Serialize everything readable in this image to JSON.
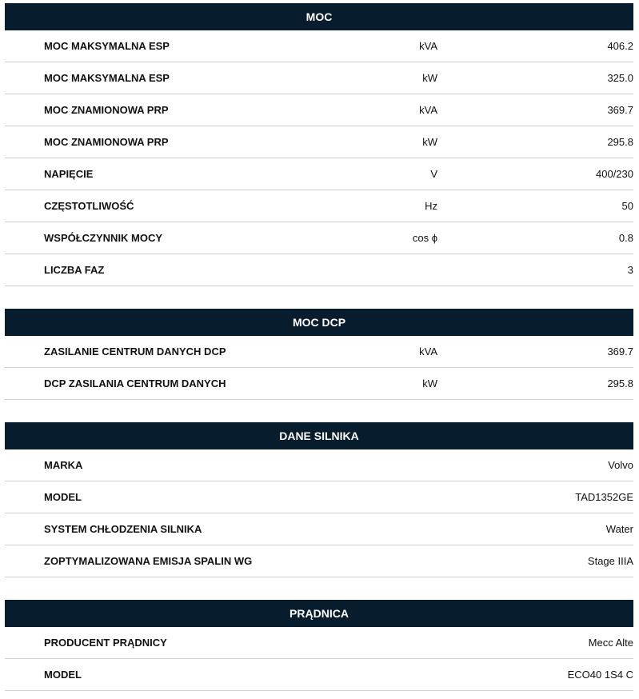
{
  "sections": [
    {
      "title": "MOC",
      "rows": [
        {
          "label": "MOC MAKSYMALNA ESP",
          "unit": "kVA",
          "value": "406.2"
        },
        {
          "label": "MOC MAKSYMALNA ESP",
          "unit": "kW",
          "value": "325.0"
        },
        {
          "label": "MOC ZNAMIONOWA PRP",
          "unit": "kVA",
          "value": "369.7"
        },
        {
          "label": "MOC ZNAMIONOWA PRP",
          "unit": "kW",
          "value": "295.8"
        },
        {
          "label": "NAPIĘCIE",
          "unit": "V",
          "value": "400/230"
        },
        {
          "label": "CZĘSTOTLIWOŚĆ",
          "unit": "Hz",
          "value": "50"
        },
        {
          "label": "WSPÓŁCZYNNIK MOCY",
          "unit": "cos ϕ",
          "value": "0.8"
        },
        {
          "label": "LICZBA FAZ",
          "unit": "",
          "value": "3"
        }
      ]
    },
    {
      "title": "MOC DCP",
      "rows": [
        {
          "label": "ZASILANIE CENTRUM DANYCH DCP",
          "unit": "kVA",
          "value": "369.7"
        },
        {
          "label": "DCP ZASILANIA CENTRUM DANYCH",
          "unit": "kW",
          "value": "295.8"
        }
      ]
    },
    {
      "title": "DANE SILNIKA",
      "rows": [
        {
          "label": "MARKA",
          "unit": "",
          "value": "Volvo"
        },
        {
          "label": "MODEL",
          "unit": "",
          "value": "TAD1352GE"
        },
        {
          "label": "SYSTEM CHŁODZENIA SILNIKA",
          "unit": "",
          "value": "Water"
        },
        {
          "label": "ZOPTYMALIZOWANA EMISJA SPALIN WG",
          "unit": "",
          "value": "Stage IIIA"
        }
      ]
    },
    {
      "title": "PRĄDNICA",
      "rows": [
        {
          "label": "PRODUCENT PRĄDNICY",
          "unit": "",
          "value": "Mecc Alte"
        },
        {
          "label": "MODEL",
          "unit": "",
          "value": "ECO40 1S4 C"
        }
      ]
    }
  ],
  "colors": {
    "header_bg": "#071d2e",
    "header_text": "#ffffff",
    "divider": "#d0d0d0"
  }
}
